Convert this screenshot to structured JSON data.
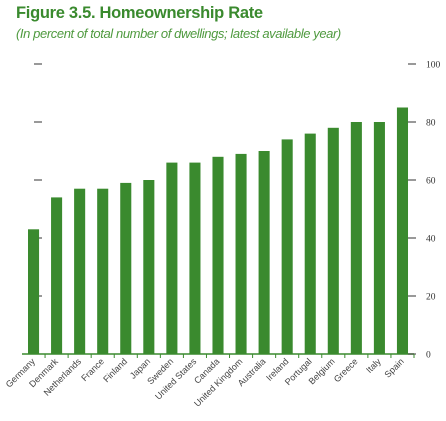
{
  "title": "Figure 3.5. Homeownership Rate",
  "subtitle": "(In percent of total number of dwellings; latest available year)",
  "chart_data": {
    "type": "bar",
    "title": "Figure 3.5. Homeownership Rate",
    "subtitle": "(In percent of total number of dwellings; latest available year)",
    "categories": [
      "Germany",
      "Denmark",
      "Netherlands",
      "France",
      "Finland",
      "Japan",
      "Sweden",
      "United States",
      "Canada",
      "United Kingdom",
      "Australia",
      "Ireland",
      "Portugal",
      "Belgium",
      "Greece",
      "Italy",
      "Spain"
    ],
    "values": [
      43,
      54,
      57,
      57,
      59,
      60,
      66,
      66,
      68,
      69,
      70,
      74,
      76,
      78,
      80,
      80,
      85
    ],
    "ylim": [
      0,
      100
    ],
    "yticks": [
      0,
      20,
      40,
      60,
      80,
      100
    ],
    "y_axis_side": "right",
    "grid": false,
    "bar_color": "#3a8a2e"
  }
}
